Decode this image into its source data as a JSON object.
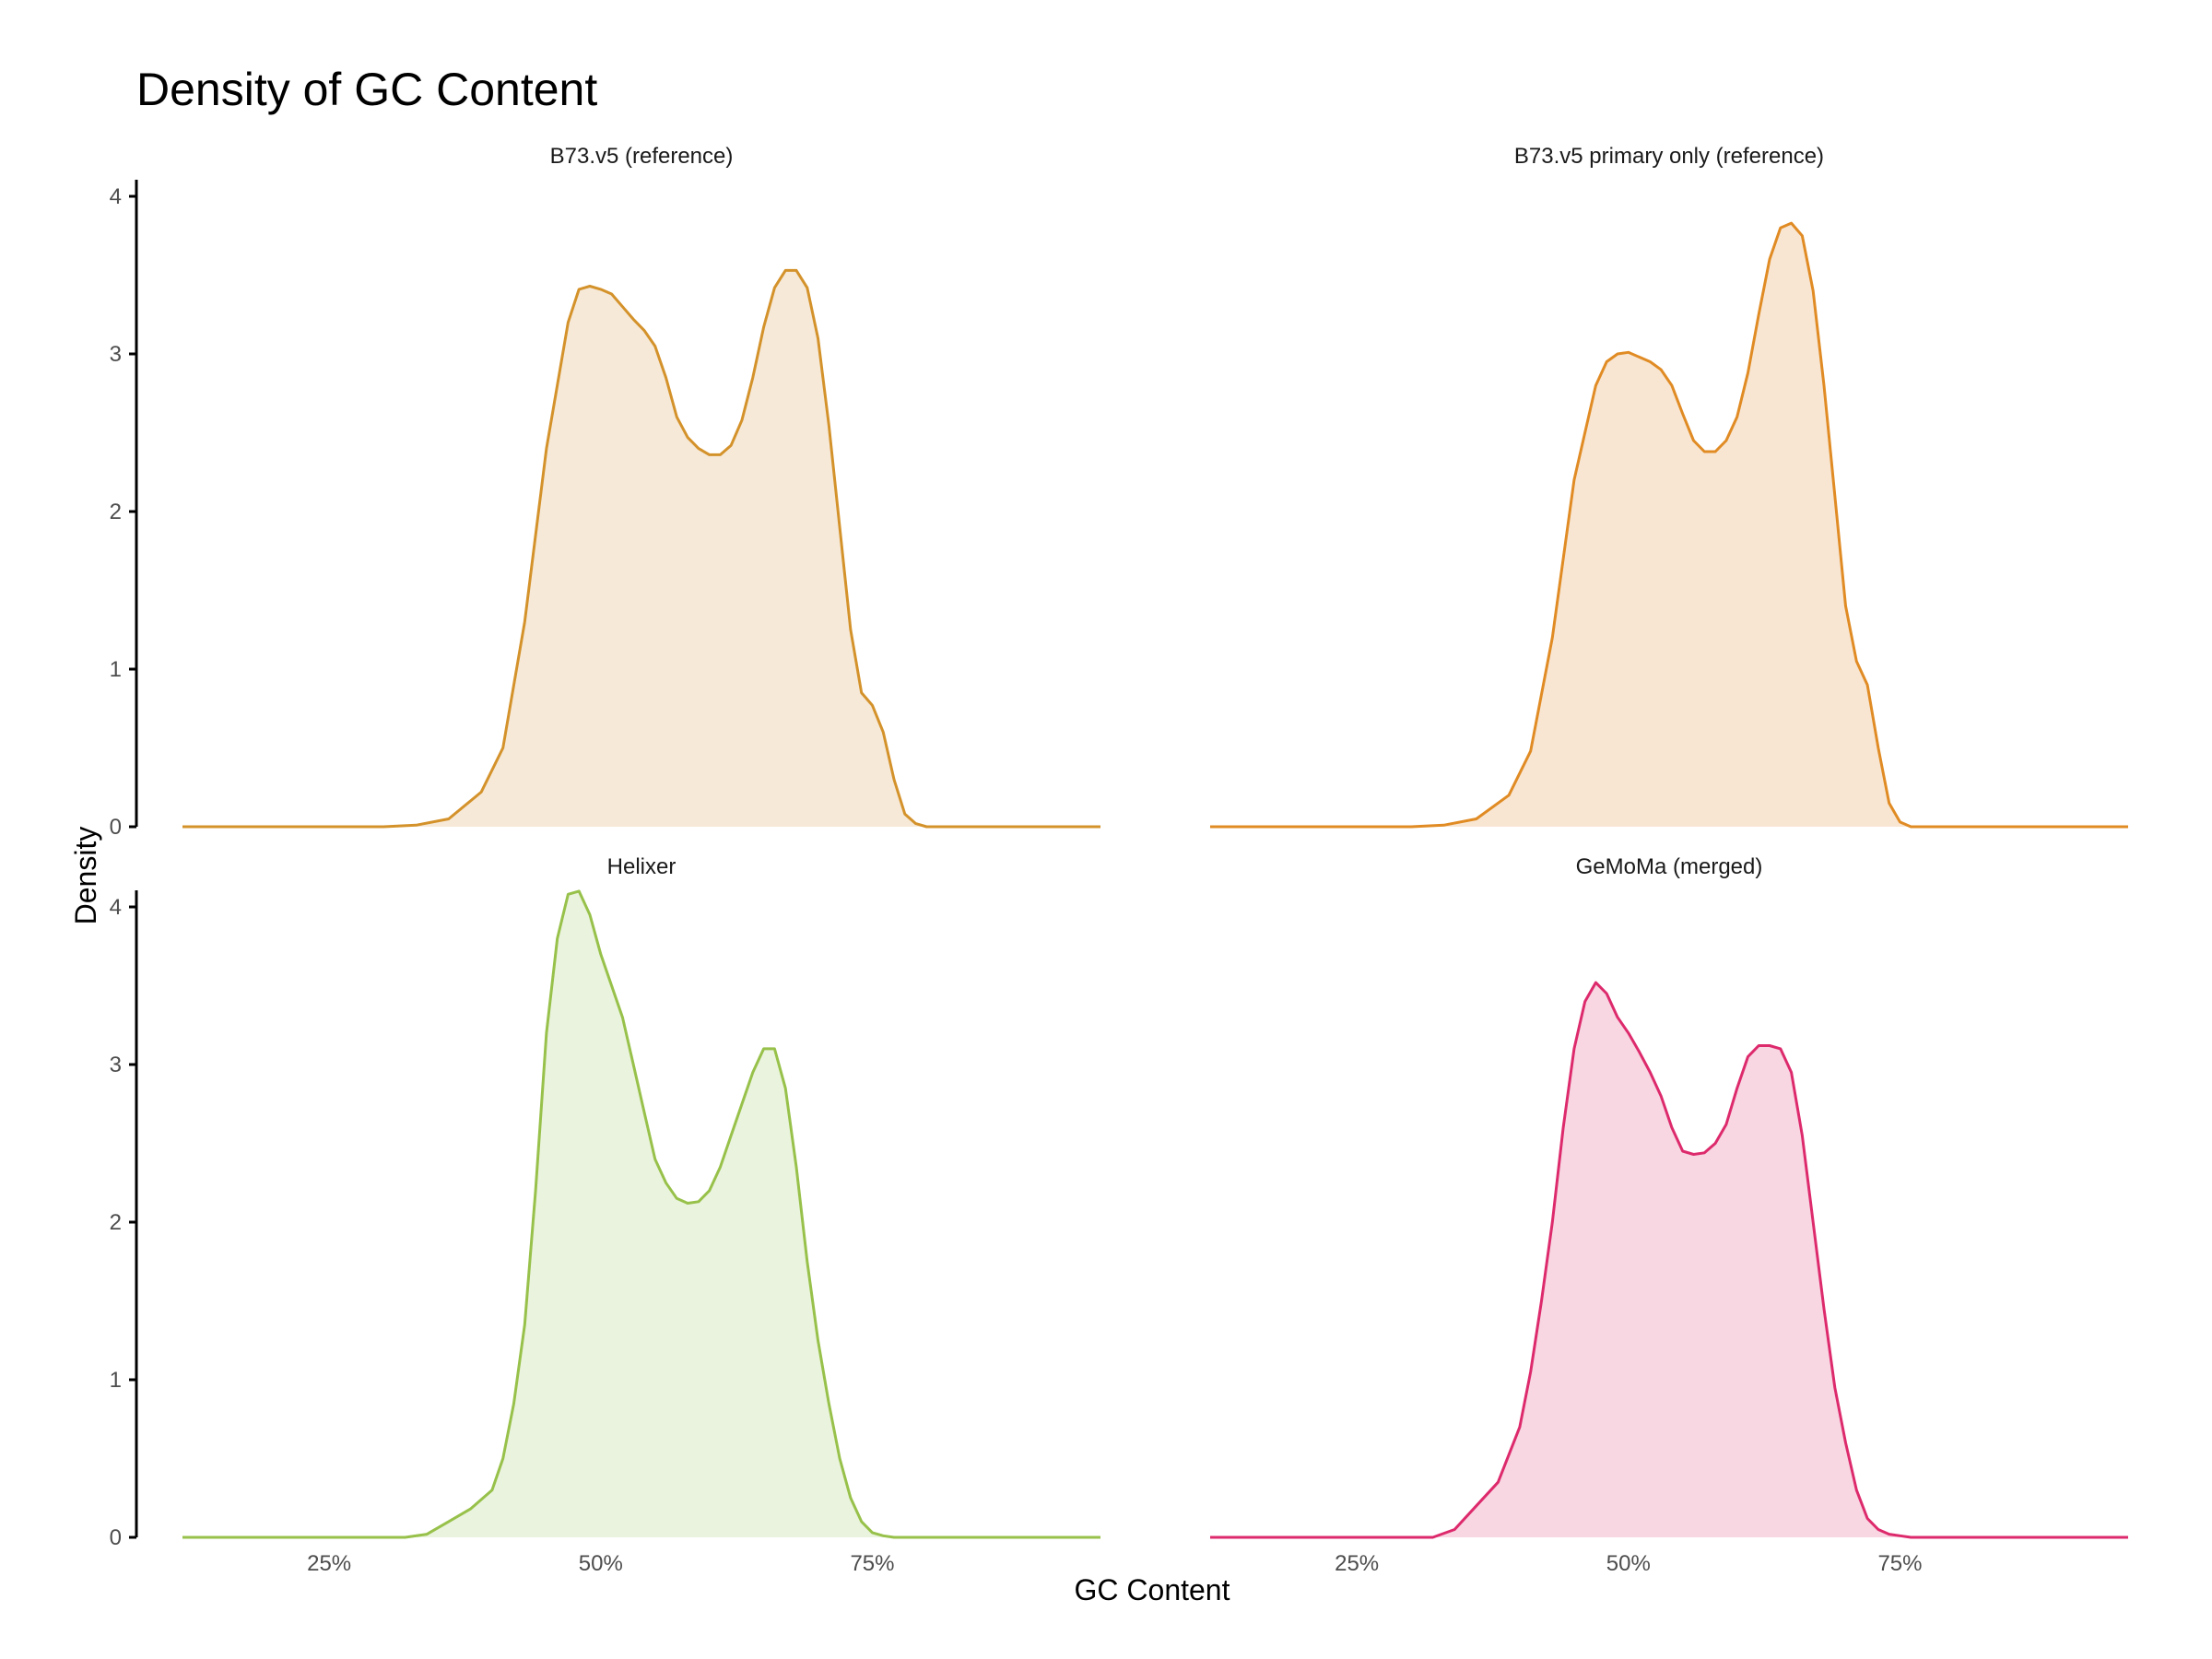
{
  "chart_data": {
    "type": "area",
    "title": "Density of GC Content",
    "xlabel": "GC Content",
    "ylabel": "Density",
    "x_ticks": [
      {
        "value": 25,
        "label": "25%"
      },
      {
        "value": 50,
        "label": "50%"
      },
      {
        "value": 75,
        "label": "75%"
      }
    ],
    "y_ticks": [
      {
        "value": 0,
        "label": "0"
      },
      {
        "value": 1,
        "label": "1"
      },
      {
        "value": 2,
        "label": "2"
      },
      {
        "value": 3,
        "label": "3"
      },
      {
        "value": 4,
        "label": "4"
      }
    ],
    "xlim": [
      11.5,
      96
    ],
    "ylim": [
      0,
      4.1
    ],
    "grid": false,
    "legend": "none",
    "panels": [
      {
        "name": "B73.v5 (reference)",
        "line_color": "#D4922B",
        "fill_color": "#F6E9D8",
        "x": [
          11.5,
          25,
          30,
          33,
          36,
          39,
          41,
          43,
          45,
          47,
          48,
          49,
          50,
          51,
          52,
          53,
          54,
          55,
          56,
          57,
          58,
          59,
          60,
          61,
          62,
          63,
          64,
          65,
          66,
          67,
          68,
          69,
          70,
          71,
          72,
          73,
          74,
          75,
          76,
          77,
          78,
          79,
          80,
          81,
          82,
          84,
          87,
          90,
          96
        ],
        "y": [
          0,
          0,
          0,
          0.01,
          0.05,
          0.22,
          0.5,
          1.3,
          2.4,
          3.2,
          3.41,
          3.43,
          3.41,
          3.38,
          3.3,
          3.22,
          3.15,
          3.05,
          2.85,
          2.6,
          2.47,
          2.4,
          2.36,
          2.36,
          2.42,
          2.58,
          2.85,
          3.17,
          3.42,
          3.53,
          3.53,
          3.42,
          3.1,
          2.55,
          1.9,
          1.25,
          0.85,
          0.77,
          0.6,
          0.3,
          0.08,
          0.02,
          0,
          0,
          0,
          0,
          0,
          0,
          0
        ]
      },
      {
        "name": "B73.v5 primary only (reference)",
        "line_color": "#E08B24",
        "fill_color": "#F8E6D3",
        "x": [
          11.5,
          25,
          30,
          33,
          36,
          39,
          41,
          43,
          45,
          47,
          48,
          49,
          50,
          51,
          52,
          53,
          54,
          55,
          56,
          57,
          58,
          59,
          60,
          61,
          62,
          63,
          64,
          65,
          66,
          67,
          68,
          69,
          70,
          71,
          72,
          73,
          74,
          75,
          76,
          77,
          78,
          79,
          80,
          81,
          82,
          84,
          87,
          90,
          96
        ],
        "y": [
          0,
          0,
          0,
          0.01,
          0.05,
          0.2,
          0.48,
          1.2,
          2.2,
          2.8,
          2.95,
          3.0,
          3.01,
          2.98,
          2.95,
          2.9,
          2.8,
          2.62,
          2.45,
          2.38,
          2.38,
          2.45,
          2.6,
          2.88,
          3.25,
          3.6,
          3.8,
          3.83,
          3.75,
          3.4,
          2.8,
          2.1,
          1.4,
          1.05,
          0.9,
          0.5,
          0.15,
          0.03,
          0,
          0,
          0,
          0,
          0,
          0,
          0,
          0,
          0,
          0,
          0
        ]
      },
      {
        "name": "Helixer",
        "line_color": "#97C14A",
        "fill_color": "#EAF3DD",
        "x": [
          11.5,
          25,
          28,
          30,
          32,
          34,
          36,
          38,
          40,
          41,
          42,
          43,
          44,
          45,
          46,
          47,
          48,
          49,
          50,
          51,
          52,
          53,
          54,
          55,
          56,
          57,
          58,
          59,
          60,
          61,
          62,
          63,
          64,
          65,
          66,
          67,
          68,
          69,
          70,
          71,
          72,
          73,
          74,
          75,
          76,
          77,
          78,
          79,
          80,
          82,
          84,
          87,
          90,
          96
        ],
        "y": [
          0,
          0,
          0,
          0,
          0,
          0.02,
          0.1,
          0.18,
          0.3,
          0.5,
          0.85,
          1.35,
          2.2,
          3.2,
          3.8,
          4.08,
          4.1,
          3.95,
          3.7,
          3.5,
          3.3,
          3.0,
          2.7,
          2.4,
          2.25,
          2.15,
          2.12,
          2.13,
          2.2,
          2.35,
          2.55,
          2.75,
          2.95,
          3.1,
          3.1,
          2.85,
          2.35,
          1.75,
          1.25,
          0.85,
          0.5,
          0.25,
          0.1,
          0.03,
          0.01,
          0,
          0,
          0,
          0,
          0,
          0,
          0,
          0,
          0
        ]
      },
      {
        "name": "GeMoMa (merged)",
        "line_color": "#DD2A6C",
        "fill_color": "#F8D6E2",
        "x": [
          11.5,
          25,
          28,
          30,
          32,
          34,
          36,
          38,
          40,
          41,
          42,
          43,
          44,
          45,
          46,
          47,
          48,
          49,
          50,
          51,
          52,
          53,
          54,
          55,
          56,
          57,
          58,
          59,
          60,
          61,
          62,
          63,
          64,
          65,
          66,
          67,
          68,
          69,
          70,
          71,
          72,
          73,
          74,
          75,
          76,
          77,
          78,
          79,
          80,
          82,
          84,
          87,
          90,
          96
        ],
        "y": [
          0,
          0,
          0,
          0,
          0,
          0.05,
          0.2,
          0.35,
          0.7,
          1.05,
          1.5,
          2.0,
          2.6,
          3.1,
          3.4,
          3.52,
          3.45,
          3.3,
          3.2,
          3.08,
          2.95,
          2.8,
          2.6,
          2.45,
          2.43,
          2.44,
          2.5,
          2.62,
          2.85,
          3.05,
          3.12,
          3.12,
          3.1,
          2.95,
          2.55,
          2.0,
          1.45,
          0.95,
          0.6,
          0.3,
          0.12,
          0.05,
          0.02,
          0.01,
          0,
          0,
          0,
          0,
          0,
          0,
          0,
          0,
          0,
          0
        ]
      }
    ]
  }
}
